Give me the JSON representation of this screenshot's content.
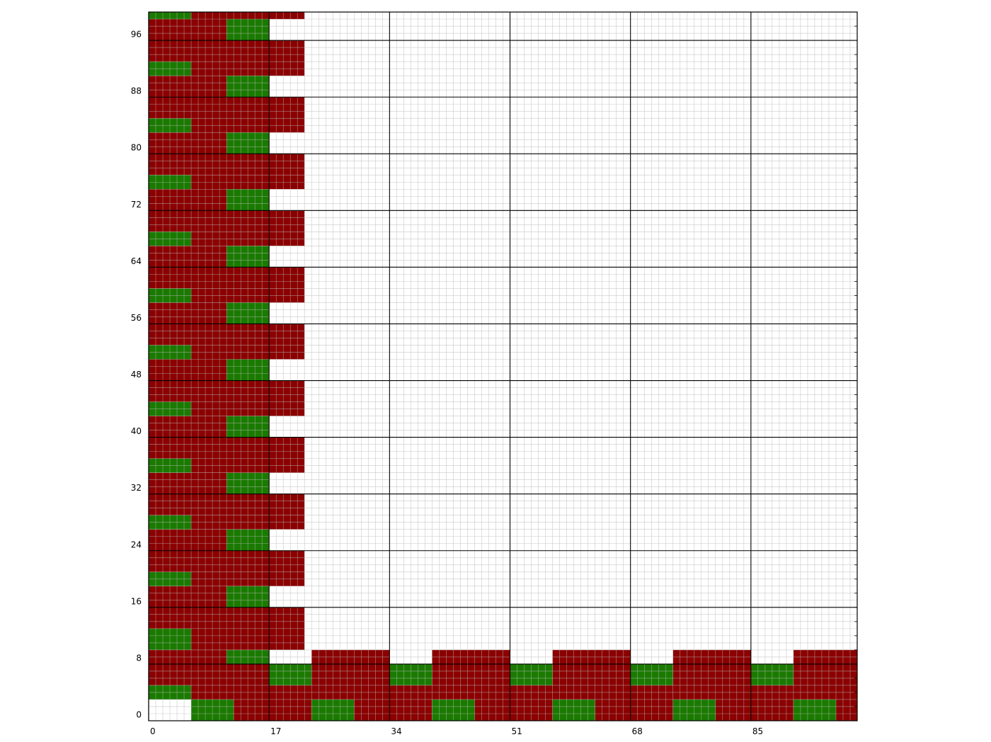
{
  "chart_data": {
    "type": "heatmap",
    "title": "",
    "xlabel": "",
    "ylabel": "",
    "xlim": [
      0,
      100
    ],
    "ylim": [
      0,
      100
    ],
    "x_tick_labels": [
      "0",
      "17",
      "34",
      "51",
      "68",
      "85"
    ],
    "y_tick_labels": [
      "0",
      "8",
      "16",
      "24",
      "32",
      "40",
      "48",
      "56",
      "64",
      "72",
      "80",
      "88",
      "96"
    ],
    "grid": {
      "minor_step": 1,
      "major_x_step": 17,
      "major_y_step": 8
    },
    "colors": {
      "green": "#1a7a00",
      "red": "#8b0000",
      "empty": "#ffffff",
      "minor_grid": "#b8b8b8",
      "major_grid": "#000000"
    },
    "rows": [
      {
        "y0": 0,
        "y1": 3,
        "segments": [
          [
            6,
            12,
            "green"
          ],
          [
            12,
            23,
            "red"
          ],
          [
            23,
            29,
            "green"
          ],
          [
            29,
            40,
            "red"
          ],
          [
            40,
            46,
            "green"
          ],
          [
            46,
            57,
            "red"
          ],
          [
            57,
            63,
            "green"
          ],
          [
            63,
            74,
            "red"
          ],
          [
            74,
            80,
            "green"
          ],
          [
            80,
            91,
            "red"
          ],
          [
            91,
            97,
            "green"
          ],
          [
            97,
            100,
            "red"
          ]
        ]
      },
      {
        "y0": 3,
        "y1": 5,
        "segments": [
          [
            0,
            6,
            "green"
          ],
          [
            6,
            100,
            "red"
          ]
        ]
      },
      {
        "y0": 5,
        "y1": 8,
        "segments": [
          [
            0,
            17,
            "red"
          ],
          [
            17,
            23,
            "green"
          ],
          [
            23,
            34,
            "red"
          ],
          [
            34,
            40,
            "green"
          ],
          [
            40,
            51,
            "red"
          ],
          [
            51,
            57,
            "green"
          ],
          [
            57,
            68,
            "red"
          ],
          [
            68,
            74,
            "green"
          ],
          [
            74,
            85,
            "red"
          ],
          [
            85,
            91,
            "green"
          ],
          [
            91,
            100,
            "red"
          ]
        ]
      },
      {
        "y0": 8,
        "y1": 10,
        "segments": [
          [
            0,
            11,
            "red"
          ],
          [
            11,
            17,
            "green"
          ],
          [
            23,
            34,
            "red"
          ],
          [
            40,
            51,
            "red"
          ],
          [
            57,
            68,
            "red"
          ],
          [
            74,
            85,
            "red"
          ],
          [
            91,
            100,
            "red"
          ]
        ]
      },
      {
        "y0": 10,
        "y1": 13,
        "segments": [
          [
            0,
            6,
            "green"
          ],
          [
            6,
            22,
            "red"
          ]
        ]
      },
      {
        "y0": 13,
        "y1": 16,
        "segments": [
          [
            0,
            22,
            "red"
          ]
        ]
      },
      {
        "y0": 16,
        "y1": 19,
        "segments": [
          [
            0,
            11,
            "red"
          ],
          [
            11,
            17,
            "green"
          ]
        ]
      },
      {
        "y0": 19,
        "y1": 21,
        "segments": [
          [
            0,
            6,
            "green"
          ],
          [
            6,
            22,
            "red"
          ]
        ]
      },
      {
        "y0": 21,
        "y1": 24,
        "segments": [
          [
            0,
            22,
            "red"
          ]
        ]
      },
      {
        "y0": 24,
        "y1": 27,
        "segments": [
          [
            0,
            11,
            "red"
          ],
          [
            11,
            17,
            "green"
          ]
        ]
      },
      {
        "y0": 27,
        "y1": 29,
        "segments": [
          [
            0,
            6,
            "green"
          ],
          [
            6,
            22,
            "red"
          ]
        ]
      },
      {
        "y0": 29,
        "y1": 32,
        "segments": [
          [
            0,
            22,
            "red"
          ]
        ]
      },
      {
        "y0": 32,
        "y1": 35,
        "segments": [
          [
            0,
            11,
            "red"
          ],
          [
            11,
            17,
            "green"
          ]
        ]
      },
      {
        "y0": 35,
        "y1": 37,
        "segments": [
          [
            0,
            6,
            "green"
          ],
          [
            6,
            22,
            "red"
          ]
        ]
      },
      {
        "y0": 37,
        "y1": 40,
        "segments": [
          [
            0,
            22,
            "red"
          ]
        ]
      },
      {
        "y0": 40,
        "y1": 43,
        "segments": [
          [
            0,
            11,
            "red"
          ],
          [
            11,
            17,
            "green"
          ]
        ]
      },
      {
        "y0": 43,
        "y1": 45,
        "segments": [
          [
            0,
            6,
            "green"
          ],
          [
            6,
            22,
            "red"
          ]
        ]
      },
      {
        "y0": 45,
        "y1": 48,
        "segments": [
          [
            0,
            22,
            "red"
          ]
        ]
      },
      {
        "y0": 48,
        "y1": 51,
        "segments": [
          [
            0,
            11,
            "red"
          ],
          [
            11,
            17,
            "green"
          ]
        ]
      },
      {
        "y0": 51,
        "y1": 53,
        "segments": [
          [
            0,
            6,
            "green"
          ],
          [
            6,
            22,
            "red"
          ]
        ]
      },
      {
        "y0": 53,
        "y1": 56,
        "segments": [
          [
            0,
            22,
            "red"
          ]
        ]
      },
      {
        "y0": 56,
        "y1": 59,
        "segments": [
          [
            0,
            11,
            "red"
          ],
          [
            11,
            17,
            "green"
          ]
        ]
      },
      {
        "y0": 59,
        "y1": 61,
        "segments": [
          [
            0,
            6,
            "green"
          ],
          [
            6,
            22,
            "red"
          ]
        ]
      },
      {
        "y0": 61,
        "y1": 64,
        "segments": [
          [
            0,
            22,
            "red"
          ]
        ]
      },
      {
        "y0": 64,
        "y1": 67,
        "segments": [
          [
            0,
            11,
            "red"
          ],
          [
            11,
            17,
            "green"
          ]
        ]
      },
      {
        "y0": 67,
        "y1": 69,
        "segments": [
          [
            0,
            6,
            "green"
          ],
          [
            6,
            22,
            "red"
          ]
        ]
      },
      {
        "y0": 69,
        "y1": 72,
        "segments": [
          [
            0,
            22,
            "red"
          ]
        ]
      },
      {
        "y0": 72,
        "y1": 75,
        "segments": [
          [
            0,
            11,
            "red"
          ],
          [
            11,
            17,
            "green"
          ]
        ]
      },
      {
        "y0": 75,
        "y1": 77,
        "segments": [
          [
            0,
            6,
            "green"
          ],
          [
            6,
            22,
            "red"
          ]
        ]
      },
      {
        "y0": 77,
        "y1": 80,
        "segments": [
          [
            0,
            22,
            "red"
          ]
        ]
      },
      {
        "y0": 80,
        "y1": 83,
        "segments": [
          [
            0,
            11,
            "red"
          ],
          [
            11,
            17,
            "green"
          ]
        ]
      },
      {
        "y0": 83,
        "y1": 85,
        "segments": [
          [
            0,
            6,
            "green"
          ],
          [
            6,
            22,
            "red"
          ]
        ]
      },
      {
        "y0": 85,
        "y1": 88,
        "segments": [
          [
            0,
            22,
            "red"
          ]
        ]
      },
      {
        "y0": 88,
        "y1": 91,
        "segments": [
          [
            0,
            11,
            "red"
          ],
          [
            11,
            17,
            "green"
          ]
        ]
      },
      {
        "y0": 91,
        "y1": 93,
        "segments": [
          [
            0,
            6,
            "green"
          ],
          [
            6,
            22,
            "red"
          ]
        ]
      },
      {
        "y0": 93,
        "y1": 96,
        "segments": [
          [
            0,
            22,
            "red"
          ]
        ]
      },
      {
        "y0": 96,
        "y1": 99,
        "segments": [
          [
            0,
            11,
            "red"
          ],
          [
            11,
            17,
            "green"
          ]
        ]
      },
      {
        "y0": 99,
        "y1": 100,
        "segments": [
          [
            0,
            6,
            "green"
          ],
          [
            6,
            22,
            "red"
          ]
        ]
      }
    ]
  }
}
